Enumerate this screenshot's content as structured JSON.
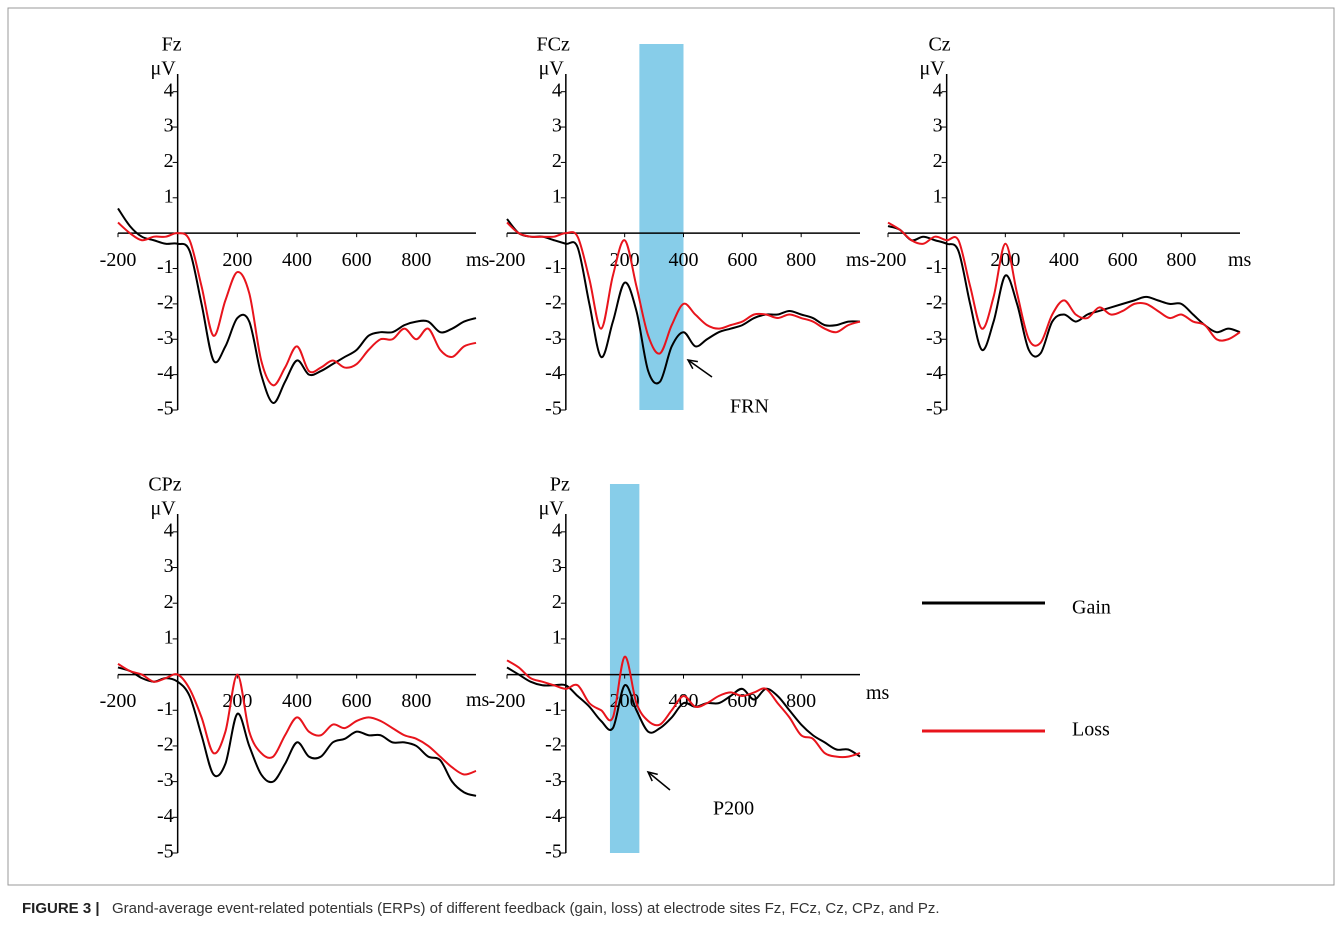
{
  "chart_data": [
    {
      "type": "line",
      "title": "Fz",
      "ylabel": "μV",
      "xlabel": "ms",
      "x": [
        -200,
        -160,
        -120,
        -80,
        -40,
        0,
        40,
        80,
        120,
        160,
        200,
        240,
        280,
        320,
        360,
        400,
        440,
        480,
        520,
        560,
        600,
        640,
        680,
        720,
        760,
        800,
        840,
        880,
        920,
        960,
        1000
      ],
      "series": [
        {
          "name": "Gain",
          "color": "#000000",
          "values": [
            0.7,
            0.2,
            -0.1,
            -0.2,
            -0.3,
            -0.3,
            -0.5,
            -2.0,
            -3.6,
            -3.2,
            -2.4,
            -2.5,
            -4.0,
            -4.8,
            -4.2,
            -3.6,
            -4.0,
            -3.9,
            -3.7,
            -3.5,
            -3.3,
            -2.9,
            -2.8,
            -2.8,
            -2.6,
            -2.5,
            -2.5,
            -2.8,
            -2.7,
            -2.5,
            -2.4
          ]
        },
        {
          "name": "Loss",
          "color": "#e8141c",
          "values": [
            0.3,
            0.0,
            -0.2,
            -0.1,
            -0.1,
            0.0,
            -0.2,
            -1.5,
            -2.9,
            -1.9,
            -1.1,
            -1.7,
            -3.6,
            -4.3,
            -3.8,
            -3.2,
            -3.9,
            -3.8,
            -3.6,
            -3.8,
            -3.7,
            -3.3,
            -3.0,
            -3.0,
            -2.7,
            -3.0,
            -2.7,
            -3.3,
            -3.5,
            -3.2,
            -3.1
          ]
        }
      ],
      "xlim": [
        -200,
        1000
      ],
      "ylim": [
        -5,
        4.5
      ],
      "xticks": [
        -200,
        200,
        400,
        600,
        800
      ],
      "yticks": [
        -5,
        -4,
        -3,
        -2,
        -1,
        1,
        2,
        3,
        4
      ]
    },
    {
      "type": "line",
      "title": "FCz",
      "ylabel": "μV",
      "xlabel": "ms",
      "x": [
        -200,
        -160,
        -120,
        -80,
        -40,
        0,
        40,
        80,
        120,
        160,
        200,
        240,
        280,
        320,
        360,
        400,
        440,
        480,
        520,
        560,
        600,
        640,
        680,
        720,
        760,
        800,
        840,
        880,
        920,
        960,
        1000
      ],
      "series": [
        {
          "name": "Gain",
          "color": "#000000",
          "values": [
            0.4,
            0.0,
            -0.1,
            -0.1,
            -0.2,
            -0.3,
            -0.4,
            -2.0,
            -3.5,
            -2.5,
            -1.4,
            -2.2,
            -3.9,
            -4.2,
            -3.2,
            -2.8,
            -3.2,
            -3.0,
            -2.8,
            -2.7,
            -2.6,
            -2.4,
            -2.3,
            -2.3,
            -2.2,
            -2.3,
            -2.4,
            -2.6,
            -2.6,
            -2.5,
            -2.5
          ]
        },
        {
          "name": "Loss",
          "color": "#e8141c",
          "values": [
            0.3,
            0.0,
            -0.1,
            -0.1,
            -0.1,
            0.0,
            -0.1,
            -1.3,
            -2.7,
            -1.2,
            -0.2,
            -1.5,
            -2.9,
            -3.4,
            -2.6,
            -2.0,
            -2.3,
            -2.6,
            -2.7,
            -2.6,
            -2.5,
            -2.3,
            -2.3,
            -2.4,
            -2.3,
            -2.4,
            -2.5,
            -2.7,
            -2.8,
            -2.6,
            -2.5
          ]
        }
      ],
      "xlim": [
        -200,
        1000
      ],
      "ylim": [
        -5,
        4.5
      ],
      "xticks": [
        -200,
        200,
        400,
        600,
        800
      ],
      "yticks": [
        -5,
        -4,
        -3,
        -2,
        -1,
        1,
        2,
        3,
        4
      ],
      "shade": [
        250,
        400
      ],
      "annotation": "FRN"
    },
    {
      "type": "line",
      "title": "Cz",
      "ylabel": "μV",
      "xlabel": "ms",
      "x": [
        -200,
        -160,
        -120,
        -80,
        -40,
        0,
        40,
        80,
        120,
        160,
        200,
        240,
        280,
        320,
        360,
        400,
        440,
        480,
        520,
        560,
        600,
        640,
        680,
        720,
        760,
        800,
        840,
        880,
        920,
        960,
        1000
      ],
      "series": [
        {
          "name": "Gain",
          "color": "#000000",
          "values": [
            0.2,
            0.1,
            -0.2,
            -0.1,
            -0.2,
            -0.3,
            -0.5,
            -2.0,
            -3.3,
            -2.5,
            -1.2,
            -2.0,
            -3.3,
            -3.4,
            -2.5,
            -2.3,
            -2.5,
            -2.3,
            -2.2,
            -2.1,
            -2.0,
            -1.9,
            -1.8,
            -1.9,
            -2.0,
            -2.0,
            -2.3,
            -2.6,
            -2.8,
            -2.7,
            -2.8
          ]
        },
        {
          "name": "Loss",
          "color": "#e8141c",
          "values": [
            0.3,
            0.1,
            -0.2,
            -0.3,
            -0.1,
            -0.2,
            -0.2,
            -1.5,
            -2.7,
            -1.8,
            -0.3,
            -1.7,
            -3.0,
            -3.1,
            -2.3,
            -1.9,
            -2.3,
            -2.4,
            -2.1,
            -2.3,
            -2.2,
            -2.0,
            -2.0,
            -2.2,
            -2.4,
            -2.3,
            -2.5,
            -2.6,
            -3.0,
            -3.0,
            -2.8
          ]
        }
      ],
      "xlim": [
        -200,
        1000
      ],
      "ylim": [
        -5,
        4.5
      ],
      "xticks": [
        -200,
        200,
        400,
        600,
        800
      ],
      "yticks": [
        -5,
        -4,
        -3,
        -2,
        -1,
        1,
        2,
        3,
        4
      ]
    },
    {
      "type": "line",
      "title": "CPz",
      "ylabel": "μV",
      "xlabel": "ms",
      "x": [
        -200,
        -160,
        -120,
        -80,
        -40,
        0,
        40,
        80,
        120,
        160,
        200,
        240,
        280,
        320,
        360,
        400,
        440,
        480,
        520,
        560,
        600,
        640,
        680,
        720,
        760,
        800,
        840,
        880,
        920,
        960,
        1000
      ],
      "series": [
        {
          "name": "Gain",
          "color": "#000000",
          "values": [
            0.2,
            0.1,
            -0.1,
            -0.2,
            -0.1,
            -0.2,
            -0.6,
            -1.7,
            -2.8,
            -2.5,
            -1.1,
            -2.0,
            -2.8,
            -3.0,
            -2.5,
            -1.9,
            -2.3,
            -2.3,
            -1.9,
            -1.8,
            -1.6,
            -1.7,
            -1.7,
            -1.9,
            -1.9,
            -2.0,
            -2.3,
            -2.4,
            -3.0,
            -3.3,
            -3.4
          ]
        },
        {
          "name": "Loss",
          "color": "#e8141c",
          "values": [
            0.3,
            0.1,
            0.0,
            -0.2,
            -0.1,
            0.0,
            -0.4,
            -1.2,
            -2.2,
            -1.6,
            0.0,
            -1.6,
            -2.2,
            -2.3,
            -1.7,
            -1.2,
            -1.6,
            -1.7,
            -1.4,
            -1.5,
            -1.3,
            -1.2,
            -1.3,
            -1.5,
            -1.7,
            -1.8,
            -2.0,
            -2.3,
            -2.6,
            -2.8,
            -2.7
          ]
        }
      ],
      "xlim": [
        -200,
        1000
      ],
      "ylim": [
        -5,
        4.5
      ],
      "xticks": [
        -200,
        200,
        400,
        600,
        800
      ],
      "yticks": [
        -5,
        -4,
        -3,
        -2,
        -1,
        1,
        2,
        3,
        4
      ]
    },
    {
      "type": "line",
      "title": "Pz",
      "ylabel": "μV",
      "xlabel": "ms",
      "x": [
        -200,
        -160,
        -120,
        -80,
        -40,
        0,
        40,
        80,
        120,
        160,
        200,
        240,
        280,
        320,
        360,
        400,
        440,
        480,
        520,
        560,
        600,
        640,
        680,
        720,
        760,
        800,
        840,
        880,
        920,
        960,
        1000
      ],
      "series": [
        {
          "name": "Gain",
          "color": "#000000",
          "values": [
            0.2,
            0.0,
            -0.2,
            -0.3,
            -0.3,
            -0.3,
            -0.6,
            -0.9,
            -1.3,
            -1.5,
            -0.3,
            -1.0,
            -1.6,
            -1.5,
            -1.2,
            -0.8,
            -0.9,
            -0.8,
            -0.8,
            -0.6,
            -0.4,
            -0.7,
            -0.4,
            -0.6,
            -1.0,
            -1.4,
            -1.7,
            -1.9,
            -2.1,
            -2.1,
            -2.3
          ]
        },
        {
          "name": "Loss",
          "color": "#e8141c",
          "values": [
            0.4,
            0.2,
            -0.1,
            -0.2,
            -0.3,
            -0.4,
            -0.3,
            -0.8,
            -1.0,
            -1.2,
            0.5,
            -0.8,
            -1.3,
            -1.4,
            -1.0,
            -0.6,
            -0.9,
            -0.8,
            -0.6,
            -0.5,
            -0.6,
            -0.5,
            -0.4,
            -0.8,
            -1.2,
            -1.7,
            -1.8,
            -2.2,
            -2.3,
            -2.3,
            -2.2
          ]
        }
      ],
      "xlim": [
        -200,
        1000
      ],
      "ylim": [
        -5,
        4.5
      ],
      "xticks": [
        -200,
        200,
        400,
        600,
        800
      ],
      "yticks": [
        -5,
        -4,
        -3,
        -2,
        -1,
        1,
        2,
        3,
        4
      ],
      "shade": [
        150,
        250
      ],
      "annotation": "P200"
    }
  ],
  "caption": {
    "label": "FIGURE 3 |",
    "text": "Grand-average event-related potentials (ERPs) of different feedback (gain, loss) at electrode sites Fz, FCz, Cz, CPz, and Pz."
  }
}
